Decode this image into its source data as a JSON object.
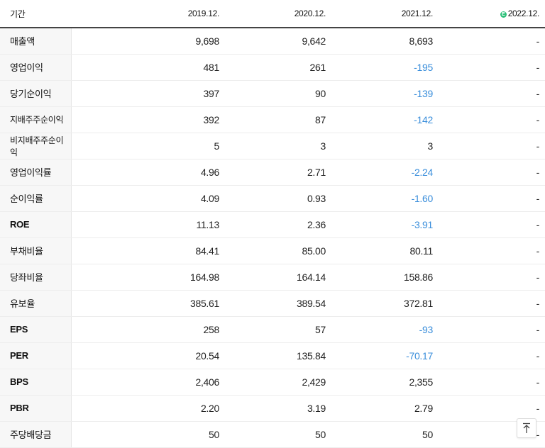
{
  "header": {
    "label": "기간",
    "periods": [
      "2019.12.",
      "2020.12.",
      "2021.12.",
      "2022.12."
    ],
    "estimate_badge": "E"
  },
  "rows": [
    {
      "label": "매출액",
      "values": [
        "9,698",
        "9,642",
        "8,693",
        "-"
      ]
    },
    {
      "label": "영업이익",
      "values": [
        "481",
        "261",
        "-195",
        "-"
      ]
    },
    {
      "label": "당기순이익",
      "values": [
        "397",
        "90",
        "-139",
        "-"
      ]
    },
    {
      "label": "지배주주순이익",
      "values": [
        "392",
        "87",
        "-142",
        "-"
      ]
    },
    {
      "label": "비지배주주순이익",
      "values": [
        "5",
        "3",
        "3",
        "-"
      ]
    },
    {
      "label": "영업이익률",
      "values": [
        "4.96",
        "2.71",
        "-2.24",
        "-"
      ]
    },
    {
      "label": "순이익률",
      "values": [
        "4.09",
        "0.93",
        "-1.60",
        "-"
      ]
    },
    {
      "label": "ROE",
      "values": [
        "11.13",
        "2.36",
        "-3.91",
        "-"
      ]
    },
    {
      "label": "부채비율",
      "values": [
        "84.41",
        "85.00",
        "80.11",
        "-"
      ]
    },
    {
      "label": "당좌비율",
      "values": [
        "164.98",
        "164.14",
        "158.86",
        "-"
      ]
    },
    {
      "label": "유보율",
      "values": [
        "385.61",
        "389.54",
        "372.81",
        "-"
      ]
    },
    {
      "label": "EPS",
      "values": [
        "258",
        "57",
        "-93",
        "-"
      ]
    },
    {
      "label": "PER",
      "values": [
        "20.54",
        "135.84",
        "-70.17",
        "-"
      ]
    },
    {
      "label": "BPS",
      "values": [
        "2,406",
        "2,429",
        "2,355",
        "-"
      ]
    },
    {
      "label": "PBR",
      "values": [
        "2.20",
        "3.19",
        "2.79",
        "-"
      ]
    },
    {
      "label": "주당배당금",
      "values": [
        "50",
        "50",
        "50",
        "-"
      ]
    }
  ],
  "colors": {
    "negative": "#3a8edb",
    "estimate_badge": "#2ec07a",
    "label_bg": "#f7f7f7"
  },
  "scroll_top_icon": "arrow-up-to-top-icon"
}
